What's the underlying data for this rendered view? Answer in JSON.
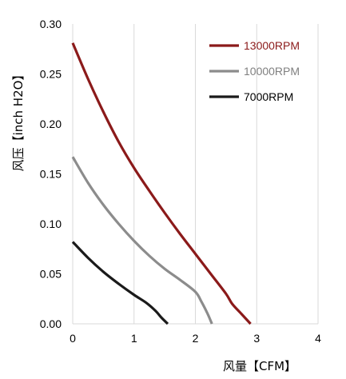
{
  "chart_data": {
    "type": "line",
    "title": "",
    "xlabel": "风量【CFM】",
    "ylabel": "风压【inch H2O】",
    "xlim": [
      0,
      4
    ],
    "ylim": [
      0,
      0.3
    ],
    "xticks": [
      0,
      1,
      2,
      3,
      4
    ],
    "xtick_labels": [
      "0",
      "1",
      "2",
      "3",
      "4"
    ],
    "yticks": [
      0,
      0.05,
      0.1,
      0.15,
      0.2,
      0.25,
      0.3
    ],
    "ytick_labels": [
      "0.00",
      "0.05",
      "0.10",
      "0.15",
      "0.20",
      "0.25",
      "0.30"
    ],
    "grid": "vertical",
    "legend_position": "top-right",
    "series": [
      {
        "name": "13000RPM",
        "color": "#8b1a1a",
        "text_color": "#8b1a1a",
        "points": [
          [
            0,
            0.281
          ],
          [
            0.25,
            0.245
          ],
          [
            0.5,
            0.212
          ],
          [
            0.75,
            0.182
          ],
          [
            1.0,
            0.156
          ],
          [
            1.25,
            0.133
          ],
          [
            1.5,
            0.111
          ],
          [
            1.75,
            0.09
          ],
          [
            2.0,
            0.07
          ],
          [
            2.25,
            0.05
          ],
          [
            2.5,
            0.03
          ],
          [
            2.6,
            0.02
          ],
          [
            2.75,
            0.01
          ],
          [
            2.9,
            0.0
          ]
        ]
      },
      {
        "name": "10000RPM",
        "color": "#8c8c8c",
        "text_color": "#808080",
        "points": [
          [
            0,
            0.167
          ],
          [
            0.25,
            0.141
          ],
          [
            0.5,
            0.119
          ],
          [
            0.75,
            0.1
          ],
          [
            1.0,
            0.083
          ],
          [
            1.25,
            0.068
          ],
          [
            1.5,
            0.055
          ],
          [
            1.75,
            0.044
          ],
          [
            2.0,
            0.032
          ],
          [
            2.1,
            0.022
          ],
          [
            2.2,
            0.01
          ],
          [
            2.27,
            0.0
          ]
        ]
      },
      {
        "name": "7000RPM",
        "color": "#1a1a1a",
        "text_color": "#000000",
        "points": [
          [
            0,
            0.082
          ],
          [
            0.25,
            0.066
          ],
          [
            0.5,
            0.052
          ],
          [
            0.75,
            0.04
          ],
          [
            1.0,
            0.029
          ],
          [
            1.2,
            0.021
          ],
          [
            1.35,
            0.013
          ],
          [
            1.45,
            0.006
          ],
          [
            1.55,
            0.0
          ]
        ]
      }
    ]
  }
}
